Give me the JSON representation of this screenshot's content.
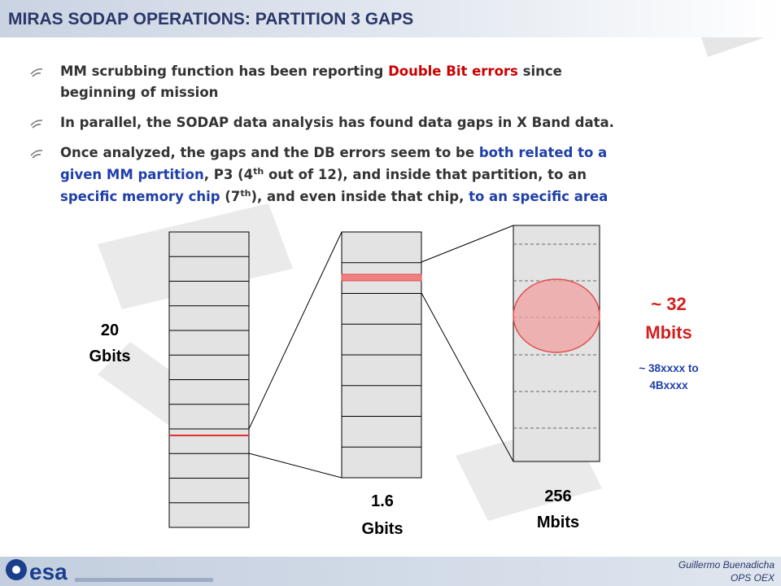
{
  "header": {
    "title": "MIRAS SODAP OPERATIONS: PARTITION 3 GAPS"
  },
  "bullets": [
    {
      "lines": [
        [
          {
            "text": "MM scrubbing function has been reporting ",
            "color": "#333333"
          },
          {
            "text": "Double Bit errors",
            "color": "#cc0000"
          },
          {
            "text": " since",
            "color": "#333333"
          }
        ],
        [
          {
            "text": "beginning of mission",
            "color": "#333333"
          }
        ]
      ]
    },
    {
      "lines": [
        [
          {
            "text": "In parallel, the SODAP data analysis has found data gaps in X Band data.",
            "color": "#333333"
          }
        ]
      ]
    },
    {
      "lines": [
        [
          {
            "text": "Once analyzed, the gaps and the DB errors seem to be ",
            "color": "#333333"
          },
          {
            "text": "both related to a",
            "color": "#1f3fa8"
          }
        ],
        [
          {
            "text": "given MM partition",
            "color": "#1f3fa8"
          },
          {
            "text": ", P3 (4",
            "color": "#333333"
          },
          {
            "text": "th",
            "color": "#333333",
            "sup": true
          },
          {
            "text": " out of 12), and inside that partition, to an",
            "color": "#333333"
          }
        ],
        [
          {
            "text": "specific memory chip",
            "color": "#1f3fa8"
          },
          {
            "text": " (7",
            "color": "#333333"
          },
          {
            "text": "th",
            "color": "#333333",
            "sup": true
          },
          {
            "text": "), and even inside that chip, ",
            "color": "#333333"
          },
          {
            "text": "to an specific area",
            "color": "#1f3fa8"
          }
        ]
      ]
    }
  ],
  "diagram": {
    "memory_label": [
      "20",
      "Gbits"
    ],
    "partition_label": [
      "1.6",
      "Gbits"
    ],
    "chip_label": [
      "256",
      "Mbits"
    ],
    "area_label": [
      "~ 32",
      "Mbits"
    ],
    "address_label": [
      "~ 38xxxx to",
      "4Bxxxx"
    ]
  },
  "footer": {
    "logo": "esa",
    "author": "Guillermo Buenadicha",
    "unit": "OPS OEX"
  }
}
